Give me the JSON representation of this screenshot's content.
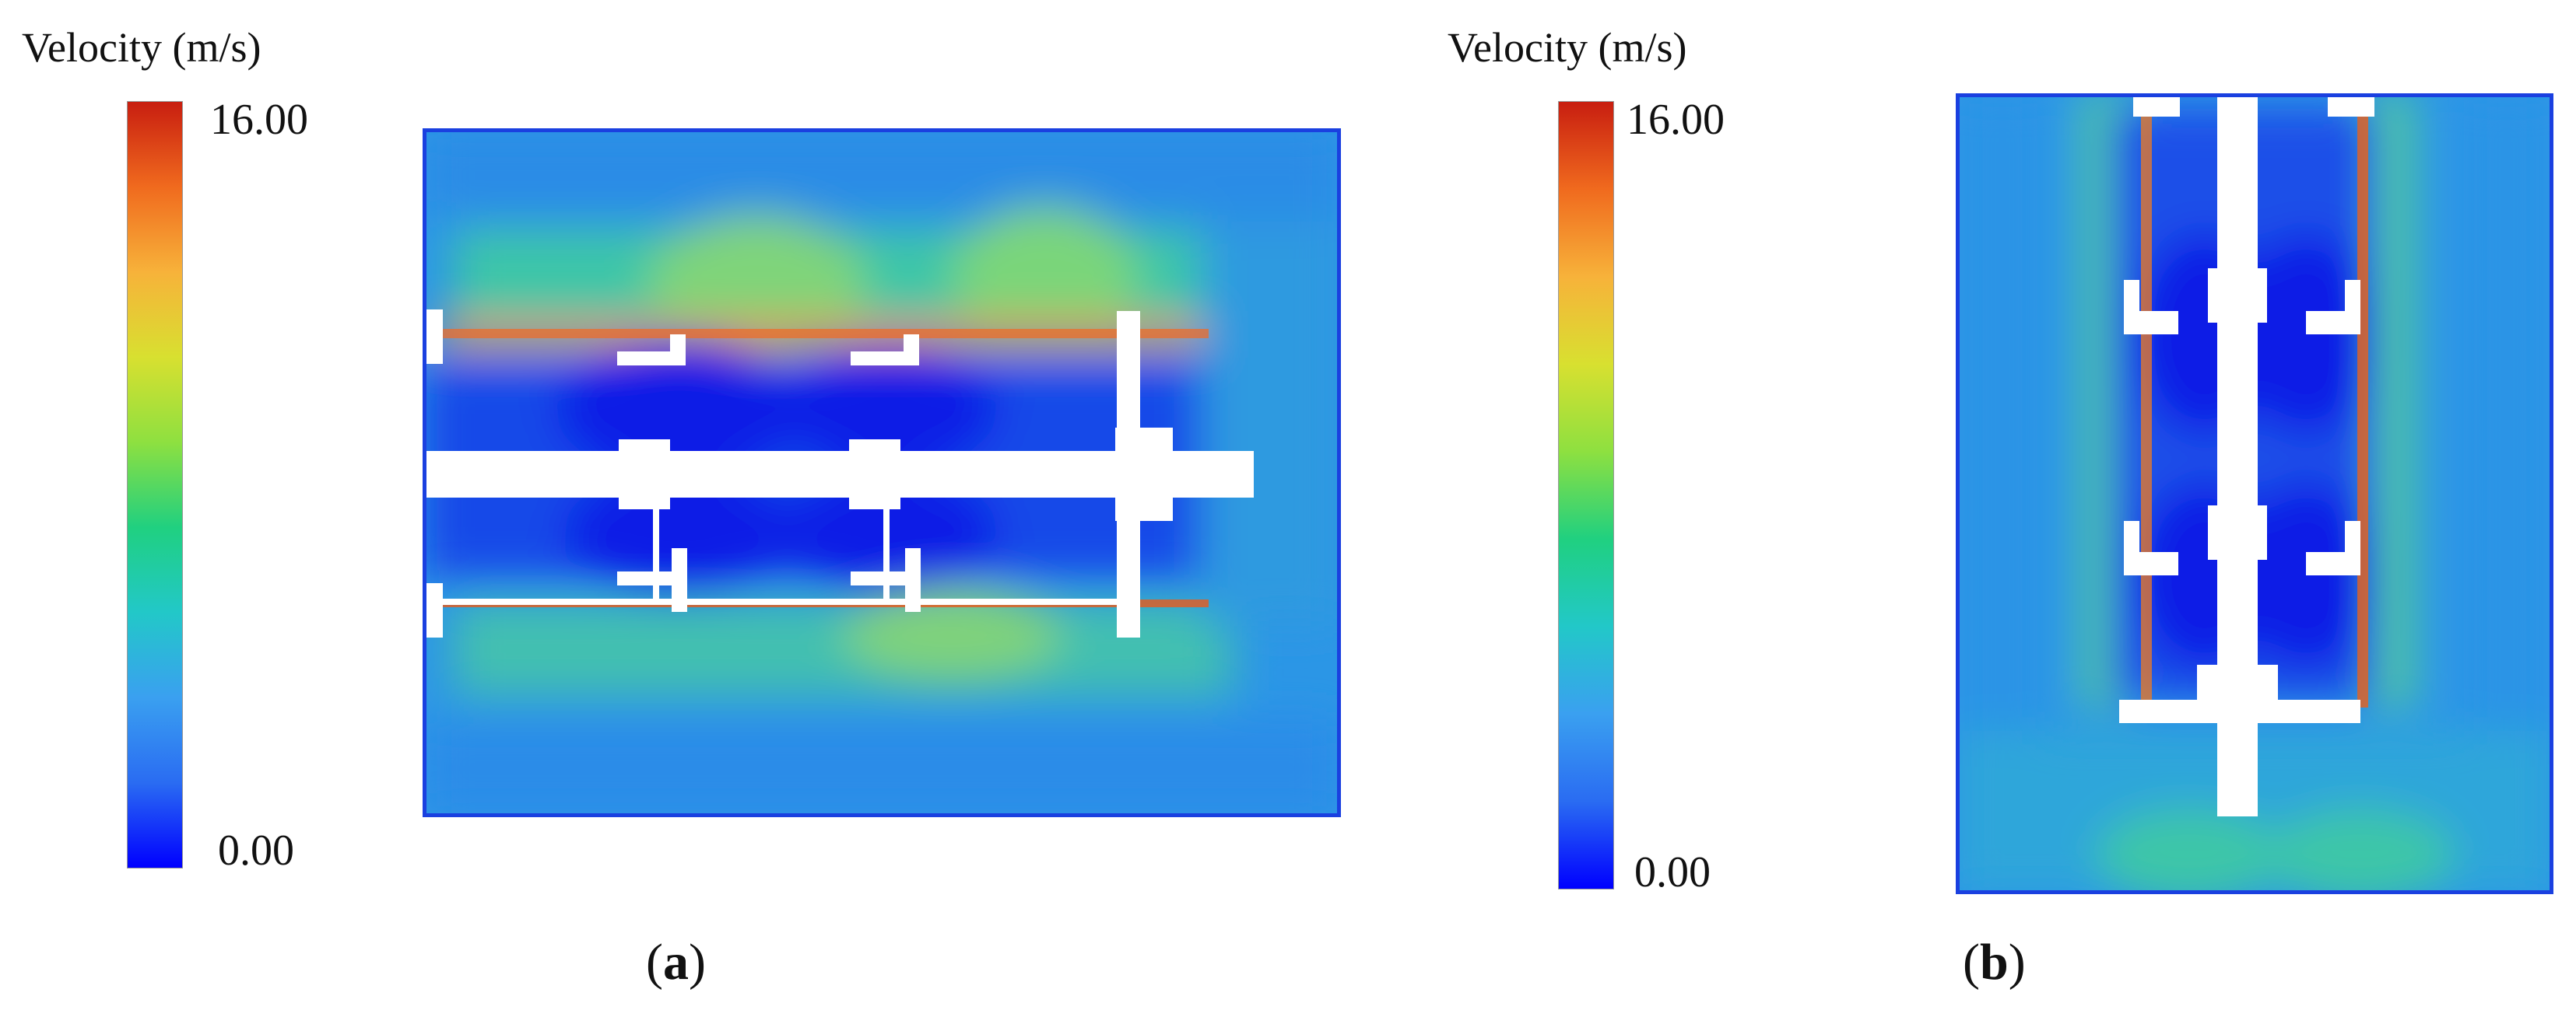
{
  "colorbar_a": {
    "title": "Velocity (m/s)",
    "max_label": "16.00",
    "min_label": "0.00",
    "stops": [
      "#0000ff",
      "#2a6cf2",
      "#3aa0f0",
      "#22c8c8",
      "#20d080",
      "#8ee040",
      "#d8e030",
      "#f7b23a",
      "#f06a1e",
      "#c81e10"
    ]
  },
  "colorbar_b": {
    "title": "Velocity (m/s)",
    "max_label": "16.00",
    "min_label": "0.00",
    "stops": [
      "#0000ff",
      "#2a6cf2",
      "#3aa0f0",
      "#22c8c8",
      "#20d080",
      "#8ee040",
      "#d8e030",
      "#f7b23a",
      "#f06a1e",
      "#c81e10"
    ]
  },
  "panels": {
    "a": {
      "label": "a"
    },
    "b": {
      "label": "b"
    }
  },
  "colors": {
    "background_field": "#2fa8e0",
    "high_velocity": "#f07a20",
    "low_velocity": "#1640e8",
    "obstacle": "#ffffff"
  }
}
